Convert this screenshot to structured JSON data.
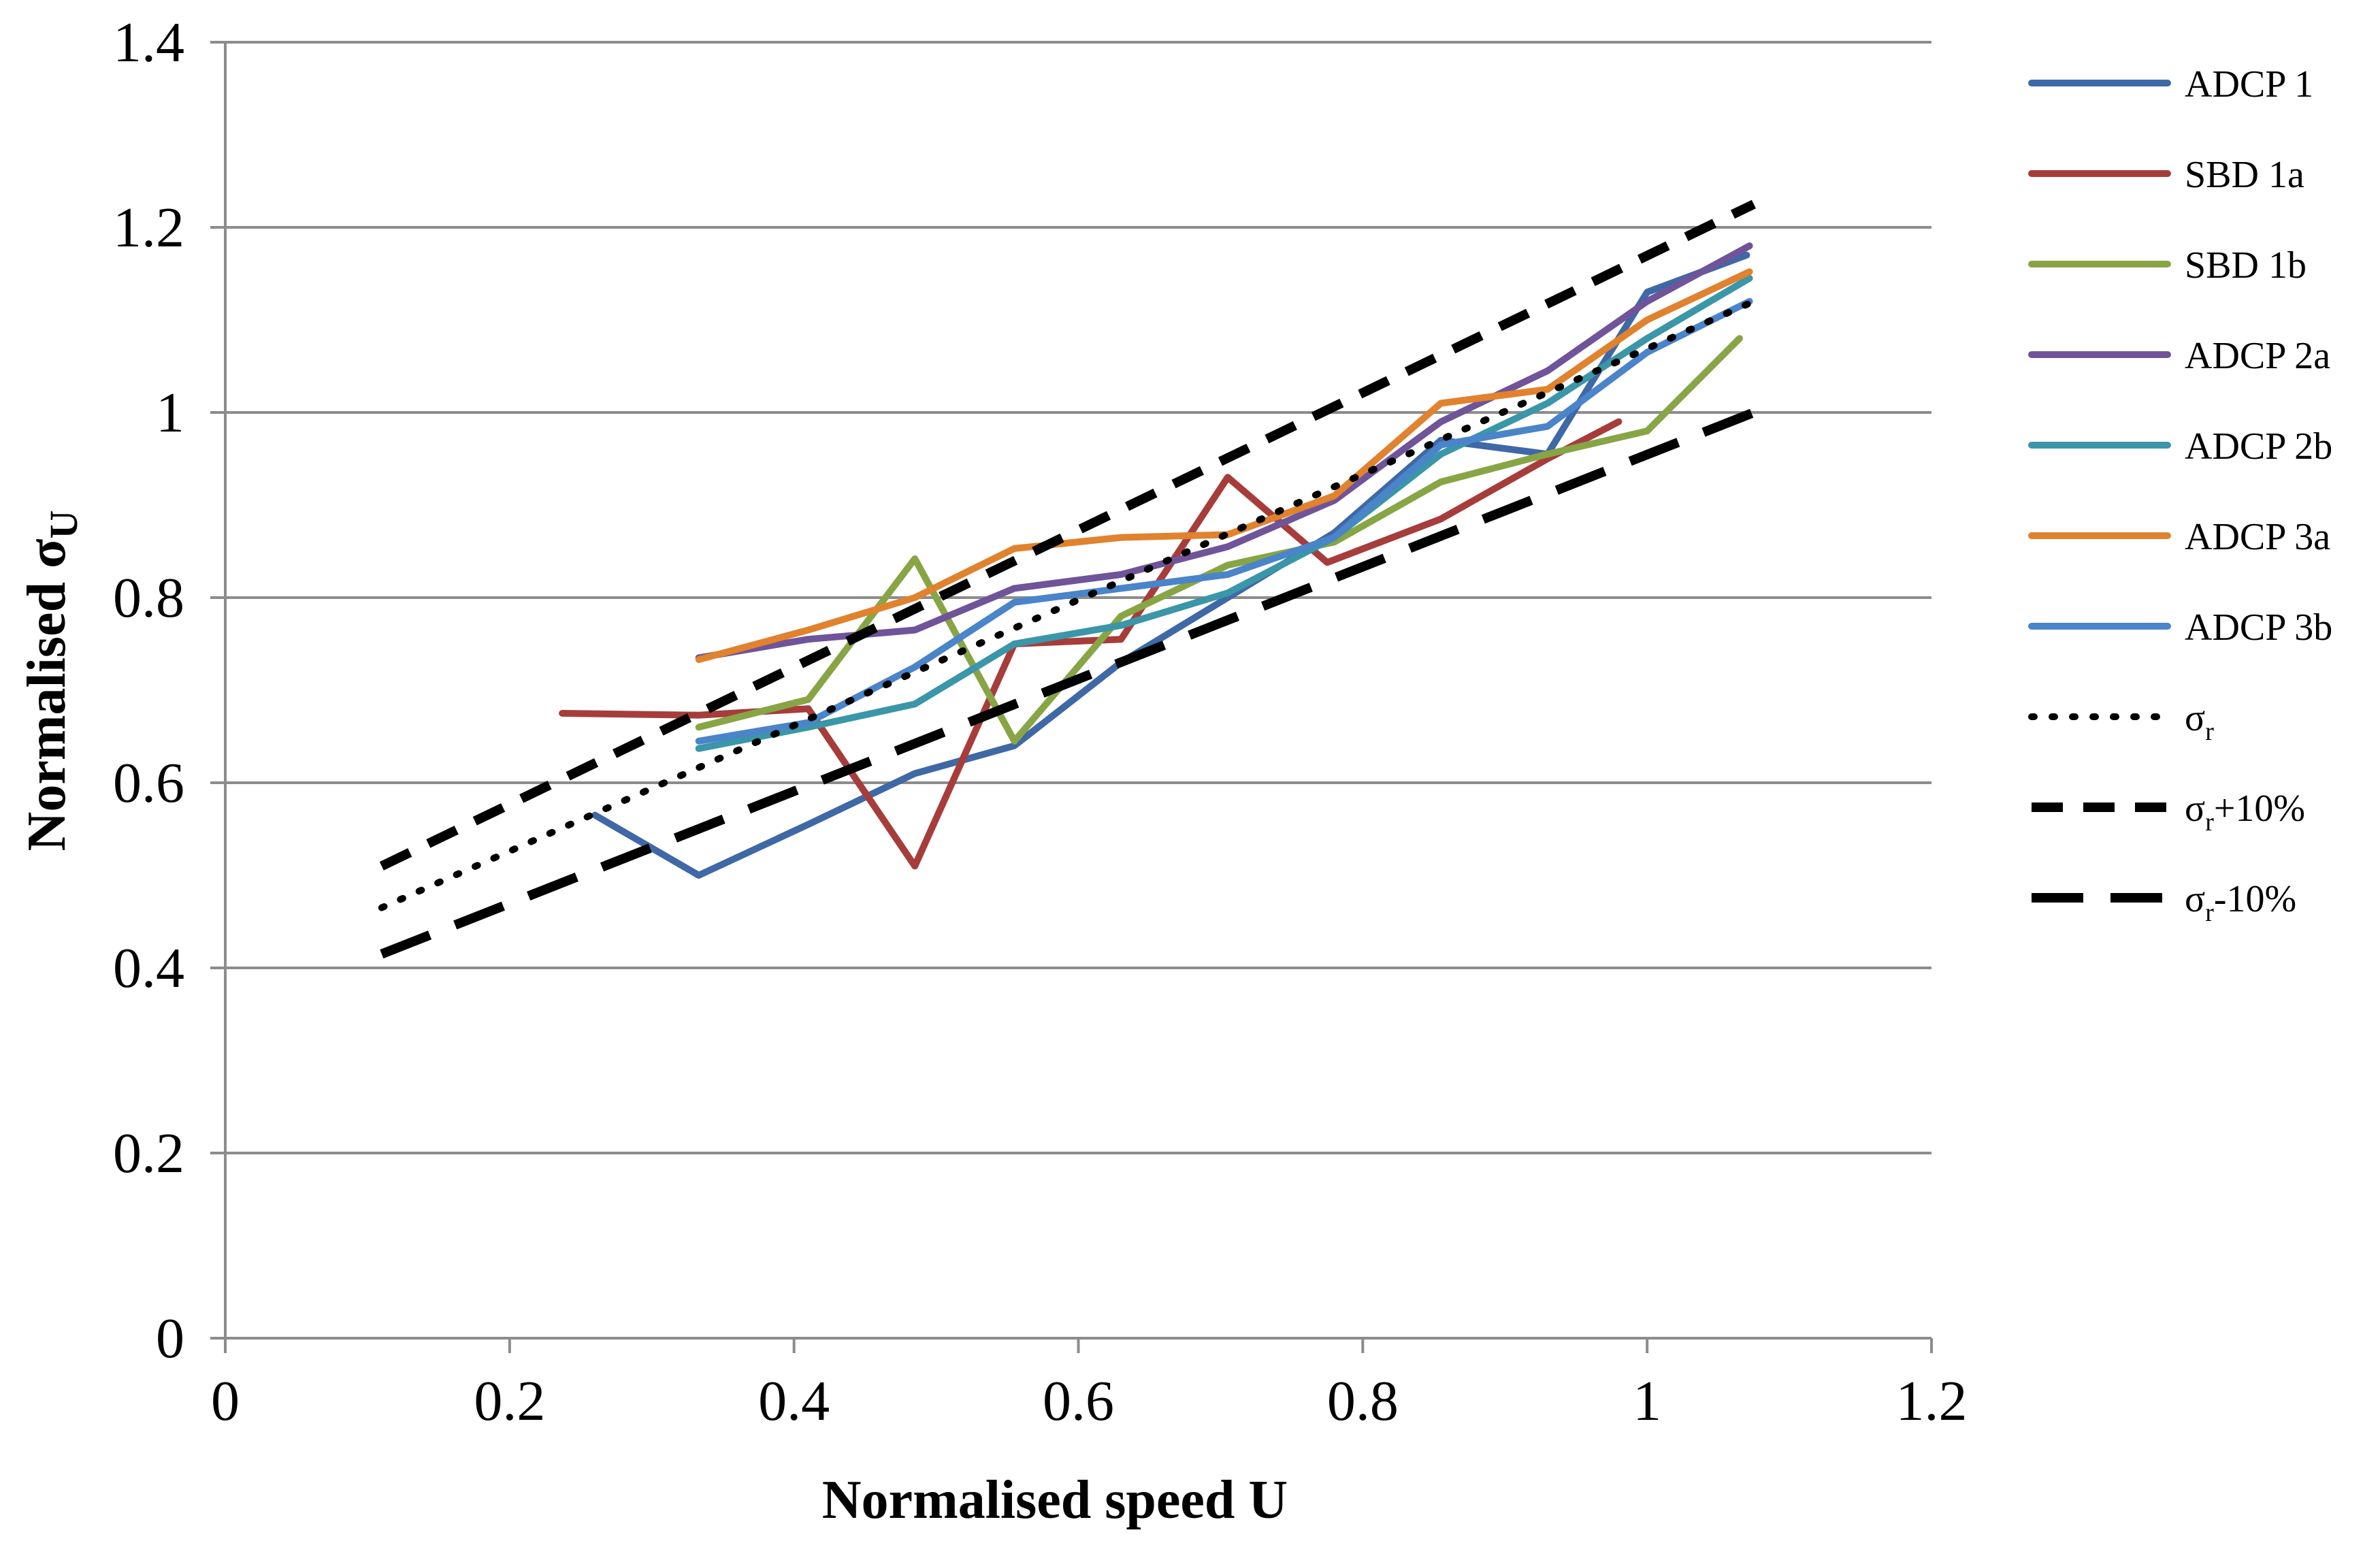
{
  "chart_data": {
    "type": "line",
    "title": "",
    "xlabel": "Normalised speed U",
    "ylabel": {
      "main": "Normalised σ",
      "sub": "U"
    },
    "xlim": [
      0,
      1.2
    ],
    "ylim": [
      0,
      1.4
    ],
    "xticks": [
      "0",
      "0.2",
      "0.4",
      "0.6",
      "0.8",
      "1",
      "1.2"
    ],
    "yticks": [
      "0",
      "0.2",
      "0.4",
      "0.6",
      "0.8",
      "1",
      "1.2",
      "1.4"
    ],
    "grid": "horizontal",
    "legend_position": "right",
    "series": [
      {
        "name": "ADCP 1",
        "color": "#3f68a6",
        "dash": "solid",
        "x": [
          0.26,
          0.333,
          0.41,
          0.485,
          0.555,
          0.63,
          0.705,
          0.78,
          0.855,
          0.93,
          1.0,
          1.07
        ],
        "y": [
          0.565,
          0.5,
          0.555,
          0.61,
          0.64,
          0.73,
          0.8,
          0.87,
          0.97,
          0.955,
          1.13,
          1.17
        ]
      },
      {
        "name": "SBD 1a",
        "color": "#a63d3b",
        "dash": "solid",
        "x": [
          0.237,
          0.333,
          0.41,
          0.485,
          0.555,
          0.63,
          0.705,
          0.775,
          0.855,
          0.93,
          0.98
        ],
        "y": [
          0.675,
          0.673,
          0.68,
          0.51,
          0.75,
          0.755,
          0.93,
          0.838,
          0.885,
          0.95,
          0.99
        ]
      },
      {
        "name": "SBD 1b",
        "color": "#88a545",
        "dash": "solid",
        "x": [
          0.333,
          0.41,
          0.485,
          0.555,
          0.63,
          0.705,
          0.78,
          0.855,
          0.93,
          1.0,
          1.065
        ],
        "y": [
          0.66,
          0.69,
          0.842,
          0.645,
          0.78,
          0.835,
          0.86,
          0.925,
          0.955,
          0.98,
          1.08
        ]
      },
      {
        "name": "ADCP 2a",
        "color": "#6f5499",
        "dash": "solid",
        "x": [
          0.333,
          0.41,
          0.485,
          0.555,
          0.63,
          0.705,
          0.78,
          0.855,
          0.93,
          1.0,
          1.072
        ],
        "y": [
          0.735,
          0.755,
          0.765,
          0.81,
          0.825,
          0.855,
          0.905,
          0.99,
          1.045,
          1.12,
          1.18
        ]
      },
      {
        "name": "ADCP 2b",
        "color": "#3a96a8",
        "dash": "solid",
        "x": [
          0.333,
          0.41,
          0.485,
          0.555,
          0.63,
          0.705,
          0.78,
          0.855,
          0.93,
          1.0,
          1.072
        ],
        "y": [
          0.637,
          0.66,
          0.685,
          0.75,
          0.77,
          0.805,
          0.865,
          0.955,
          1.01,
          1.08,
          1.145
        ]
      },
      {
        "name": "ADCP 3a",
        "color": "#e0822e",
        "dash": "solid",
        "x": [
          0.333,
          0.41,
          0.485,
          0.555,
          0.63,
          0.705,
          0.78,
          0.855,
          0.93,
          1.0,
          1.072
        ],
        "y": [
          0.733,
          0.765,
          0.8,
          0.853,
          0.865,
          0.868,
          0.91,
          1.01,
          1.025,
          1.1,
          1.152
        ]
      },
      {
        "name": "ADCP 3b",
        "color": "#4a84c9",
        "dash": "solid",
        "x": [
          0.333,
          0.41,
          0.485,
          0.555,
          0.63,
          0.705,
          0.78,
          0.855,
          0.93,
          1.0,
          1.072
        ],
        "y": [
          0.645,
          0.665,
          0.725,
          0.795,
          0.81,
          0.825,
          0.865,
          0.965,
          0.985,
          1.065,
          1.12
        ]
      },
      {
        "name": "σr",
        "label_main": "σ",
        "label_sub": "r",
        "label_suffix": "",
        "color": "#000000",
        "dash": "dot",
        "x": [
          0.11,
          1.075
        ],
        "y": [
          0.465,
          1.12
        ]
      },
      {
        "name": "σr+10%",
        "label_main": "σ",
        "label_sub": "r",
        "label_suffix": "+10%",
        "color": "#000000",
        "dash": "dash",
        "x": [
          0.11,
          1.075
        ],
        "y": [
          0.51,
          1.225
        ]
      },
      {
        "name": "σr-10%",
        "label_main": "σ",
        "label_sub": "r",
        "label_suffix": "-10%",
        "color": "#000000",
        "dash": "longdash",
        "x": [
          0.11,
          1.075
        ],
        "y": [
          0.415,
          1.0
        ]
      }
    ]
  }
}
